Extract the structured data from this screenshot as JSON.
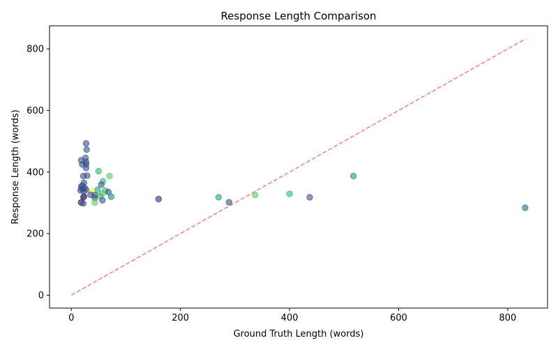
{
  "chart_data": {
    "type": "scatter",
    "title": "Response Length Comparison",
    "xlabel": "Ground Truth Length (words)",
    "ylabel": "Response Length (words)",
    "xlim": [
      -40,
      873
    ],
    "ylim": [
      -42,
      875
    ],
    "xticks": [
      0,
      200,
      400,
      600,
      800
    ],
    "yticks": [
      0,
      200,
      400,
      600,
      800
    ],
    "grid": false,
    "reference_line": {
      "x": [
        0,
        833
      ],
      "y": [
        0,
        833
      ],
      "style": "dashed",
      "color": "#f08080"
    },
    "point_alpha": 0.6,
    "points": [
      {
        "x": 27,
        "y": 493,
        "color": "#3b528b"
      },
      {
        "x": 28,
        "y": 473,
        "color": "#3b528b"
      },
      {
        "x": 26,
        "y": 446,
        "color": "#3b528b"
      },
      {
        "x": 18,
        "y": 438,
        "color": "#3b528b"
      },
      {
        "x": 27,
        "y": 433,
        "color": "#3b528b"
      },
      {
        "x": 27,
        "y": 425,
        "color": "#3b528b"
      },
      {
        "x": 20,
        "y": 425,
        "color": "#3b528b"
      },
      {
        "x": 27,
        "y": 413,
        "color": "#3b528b"
      },
      {
        "x": 50,
        "y": 403,
        "color": "#35b779"
      },
      {
        "x": 22,
        "y": 387,
        "color": "#3b528b"
      },
      {
        "x": 29,
        "y": 388,
        "color": "#3b528b"
      },
      {
        "x": 70,
        "y": 387,
        "color": "#5ec962"
      },
      {
        "x": 58,
        "y": 370,
        "color": "#35b779"
      },
      {
        "x": 23,
        "y": 365,
        "color": "#3b528b"
      },
      {
        "x": 20,
        "y": 356,
        "color": "#3b528b"
      },
      {
        "x": 55,
        "y": 359,
        "color": "#3b528b"
      },
      {
        "x": 18,
        "y": 352,
        "color": "#3b528b"
      },
      {
        "x": 24,
        "y": 349,
        "color": "#3b528b"
      },
      {
        "x": 20,
        "y": 345,
        "color": "#3b528b"
      },
      {
        "x": 27,
        "y": 343,
        "color": "#3b528b"
      },
      {
        "x": 17,
        "y": 340,
        "color": "#3b528b"
      },
      {
        "x": 23,
        "y": 338,
        "color": "#3b528b"
      },
      {
        "x": 48,
        "y": 342,
        "color": "#1f9e89"
      },
      {
        "x": 62,
        "y": 340,
        "color": "#35b779"
      },
      {
        "x": 68,
        "y": 335,
        "color": "#3b528b"
      },
      {
        "x": 38,
        "y": 336,
        "color": "#fde725"
      },
      {
        "x": 57,
        "y": 330,
        "color": "#5ec962"
      },
      {
        "x": 35,
        "y": 326,
        "color": "#3b528b"
      },
      {
        "x": 43,
        "y": 325,
        "color": "#3b528b"
      },
      {
        "x": 53,
        "y": 322,
        "color": "#35b779"
      },
      {
        "x": 73,
        "y": 320,
        "color": "#21918c"
      },
      {
        "x": 23,
        "y": 320,
        "color": "#440154"
      },
      {
        "x": 43,
        "y": 316,
        "color": "#3b528b"
      },
      {
        "x": 22,
        "y": 318,
        "color": "#3b528b"
      },
      {
        "x": 57,
        "y": 308,
        "color": "#3b528b"
      },
      {
        "x": 43,
        "y": 301,
        "color": "#5ec962"
      },
      {
        "x": 18,
        "y": 301,
        "color": "#440154"
      },
      {
        "x": 22,
        "y": 298,
        "color": "#3b528b"
      },
      {
        "x": 160,
        "y": 312,
        "color": "#482878"
      },
      {
        "x": 270,
        "y": 318,
        "color": "#1f9e89"
      },
      {
        "x": 289,
        "y": 302,
        "color": "#3b528b"
      },
      {
        "x": 337,
        "y": 325,
        "color": "#5ec962"
      },
      {
        "x": 400,
        "y": 329,
        "color": "#35b779"
      },
      {
        "x": 437,
        "y": 318,
        "color": "#3b528b"
      },
      {
        "x": 517,
        "y": 387,
        "color": "#21918c"
      },
      {
        "x": 832,
        "y": 284,
        "color": "#31688e"
      }
    ]
  }
}
